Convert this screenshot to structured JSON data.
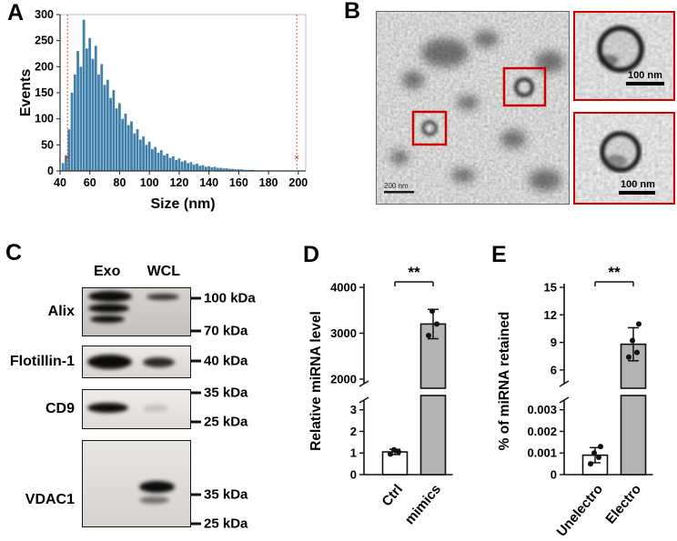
{
  "figure": {
    "panel_labels": {
      "A": "A",
      "B": "B",
      "C": "C",
      "D": "D",
      "E": "E"
    }
  },
  "panels": {
    "B": {
      "main_scalebar": "200 nm",
      "inset_top_scalebar": "100 nm",
      "inset_bottom_scalebar": "100 nm"
    },
    "C": {
      "col_headers": [
        "Exo",
        "WCL"
      ],
      "rows": [
        {
          "protein": "Alix",
          "markers": [
            "100 kDa",
            "70 kDa"
          ]
        },
        {
          "protein": "Flotillin-1",
          "markers": [
            "40 kDa"
          ]
        },
        {
          "protein": "CD9",
          "markers": [
            "35 kDa",
            "25 kDa"
          ]
        },
        {
          "protein": "VDAC1",
          "markers": [
            "35 kDa",
            "25 kDa"
          ]
        }
      ]
    }
  },
  "chart_data": [
    {
      "id": "size-distribution-histogram",
      "type": "bar",
      "panel": "A",
      "xlabel": "Size (nm)",
      "ylabel": "Events",
      "xlim": [
        40,
        205
      ],
      "ylim": [
        0,
        300
      ],
      "xticks": [
        40,
        60,
        80,
        100,
        120,
        140,
        160,
        180,
        200
      ],
      "yticks": [
        0,
        50,
        100,
        150,
        200,
        250,
        300
      ],
      "x_start": 42,
      "x_step": 2,
      "bin_width": 2,
      "bar_color": "#4080ab",
      "cursor_lines_x": [
        45,
        199
      ],
      "cursor_marker_y": 25,
      "counts": [
        15,
        30,
        80,
        150,
        185,
        230,
        200,
        290,
        235,
        255,
        215,
        240,
        185,
        205,
        165,
        175,
        140,
        155,
        120,
        130,
        100,
        110,
        88,
        95,
        72,
        80,
        60,
        66,
        50,
        56,
        42,
        46,
        35,
        40,
        30,
        33,
        25,
        28,
        21,
        24,
        18,
        20,
        15,
        17,
        12,
        14,
        10,
        11,
        8,
        9,
        7,
        8,
        6,
        6,
        5,
        5,
        4,
        4,
        3,
        3,
        3,
        2,
        2,
        2,
        2,
        1,
        1,
        1,
        1,
        1,
        1,
        0,
        1,
        0,
        0,
        1,
        0,
        0,
        0,
        0
      ]
    },
    {
      "id": "relative-mirna-level",
      "type": "bar",
      "panel": "D",
      "ylabel": "Relative miRNA level",
      "categories": [
        "Ctrl",
        "mimics"
      ],
      "values": [
        1.05,
        3200
      ],
      "errors": [
        0.12,
        320
      ],
      "points": [
        [
          0.95,
          1.05,
          1.15
        ],
        [
          2950,
          3200,
          3480
        ]
      ],
      "bar_colors": [
        "#ffffff",
        "#b3b3b3"
      ],
      "significance": "**",
      "axis_break": {
        "lower_range": [
          0,
          3
        ],
        "lower_ticks": [
          0,
          1,
          2,
          3
        ],
        "lower_tick_labels": [
          "0",
          "1",
          "2",
          "3"
        ],
        "upper_range": [
          1900,
          4000
        ],
        "upper_ticks": [
          2000,
          3000,
          4000
        ],
        "upper_tick_labels": [
          "2000",
          "3000",
          "4000"
        ]
      }
    },
    {
      "id": "percent-mirna-retained",
      "type": "bar",
      "panel": "E",
      "ylabel": "% of miRNA retained",
      "categories": [
        "Unelectro",
        "Electro"
      ],
      "values": [
        0.0009,
        8.8
      ],
      "errors": [
        0.00035,
        1.8
      ],
      "points": [
        [
          0.0005,
          0.0008,
          0.001,
          0.0013
        ],
        [
          7.4,
          7.9,
          9.2,
          11.0
        ]
      ],
      "bar_colors": [
        "#ffffff",
        "#b3b3b3"
      ],
      "significance": "**",
      "axis_break": {
        "lower_range": [
          0,
          0.003
        ],
        "lower_ticks": [
          0,
          0.001,
          0.002,
          0.003
        ],
        "lower_tick_labels": [
          "0",
          "0.001",
          "0.002",
          "0.003"
        ],
        "upper_range": [
          4.5,
          15
        ],
        "upper_ticks": [
          6,
          9,
          12,
          15
        ],
        "upper_tick_labels": [
          "6",
          "9",
          "12",
          "15"
        ]
      }
    }
  ]
}
